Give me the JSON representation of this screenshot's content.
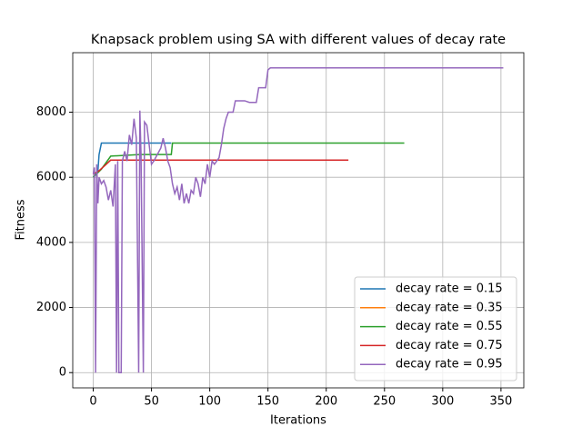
{
  "chart_data": {
    "type": "line",
    "title": "Knapsack problem using SA with different values of decay rate",
    "x_label": "Iterations",
    "y_label": "Fitness",
    "xlim": [
      -17.6,
      369.6
    ],
    "xticks": [
      0,
      50,
      100,
      150,
      200,
      250,
      300,
      350
    ],
    "ylim": [
      -468,
      9828
    ],
    "yticks": [
      0,
      2000,
      4000,
      6000,
      8000
    ],
    "grid": true,
    "legend": "lower right",
    "series": [
      {
        "name": "decay rate = 0.15",
        "color": "#1f77b4",
        "x": [
          0,
          4,
          5,
          7,
          67
        ],
        "values": [
          6000,
          6200,
          6700,
          7050,
          7050
        ]
      },
      {
        "name": "decay rate = 0.35",
        "color": "#ff7f0e",
        "x": [
          0,
          5,
          15,
          219
        ],
        "values": [
          6100,
          6200,
          6530,
          6530
        ]
      },
      {
        "name": "decay rate = 0.55",
        "color": "#2ca02c",
        "x": [
          0,
          7,
          15,
          40,
          67,
          68,
          267
        ],
        "values": [
          6000,
          6250,
          6650,
          6700,
          6700,
          7050,
          7050
        ]
      },
      {
        "name": "decay rate = 0.75",
        "color": "#d62728",
        "x": [
          0,
          5,
          15,
          219
        ],
        "values": [
          6100,
          6200,
          6530,
          6530
        ]
      },
      {
        "name": "decay rate = 0.95",
        "color": "#9467bd",
        "x": [
          0,
          1,
          2,
          3,
          4,
          5,
          7,
          9,
          11,
          13,
          15,
          17,
          19,
          20,
          21,
          22,
          24,
          25,
          27,
          29,
          31,
          33,
          35,
          37,
          39,
          40,
          41,
          43,
          44,
          46,
          48,
          50,
          52,
          55,
          58,
          60,
          62,
          64,
          66,
          68,
          70,
          72,
          74,
          76,
          78,
          80,
          82,
          84,
          86,
          88,
          90,
          92,
          94,
          96,
          98,
          100,
          102,
          104,
          106,
          108,
          110,
          112,
          114,
          116,
          120,
          122,
          130,
          134,
          140,
          142,
          148,
          150,
          152,
          352
        ],
        "values": [
          6100,
          6300,
          0,
          6400,
          5200,
          6000,
          5800,
          5900,
          5700,
          5300,
          5600,
          5100,
          6400,
          0,
          6500,
          0,
          0,
          6500,
          6800,
          6500,
          7300,
          7000,
          7800,
          7200,
          0,
          8050,
          6700,
          0,
          7700,
          7600,
          7000,
          6400,
          6500,
          6700,
          6900,
          7200,
          6900,
          6500,
          6300,
          5800,
          5500,
          5700,
          5300,
          5800,
          5200,
          5500,
          5200,
          5600,
          5500,
          6000,
          5800,
          5400,
          6000,
          5800,
          6400,
          6000,
          6500,
          6400,
          6500,
          6600,
          7000,
          7500,
          7800,
          8000,
          8000,
          8350,
          8350,
          8300,
          8300,
          8750,
          8750,
          9300,
          9360,
          9360
        ]
      }
    ]
  }
}
